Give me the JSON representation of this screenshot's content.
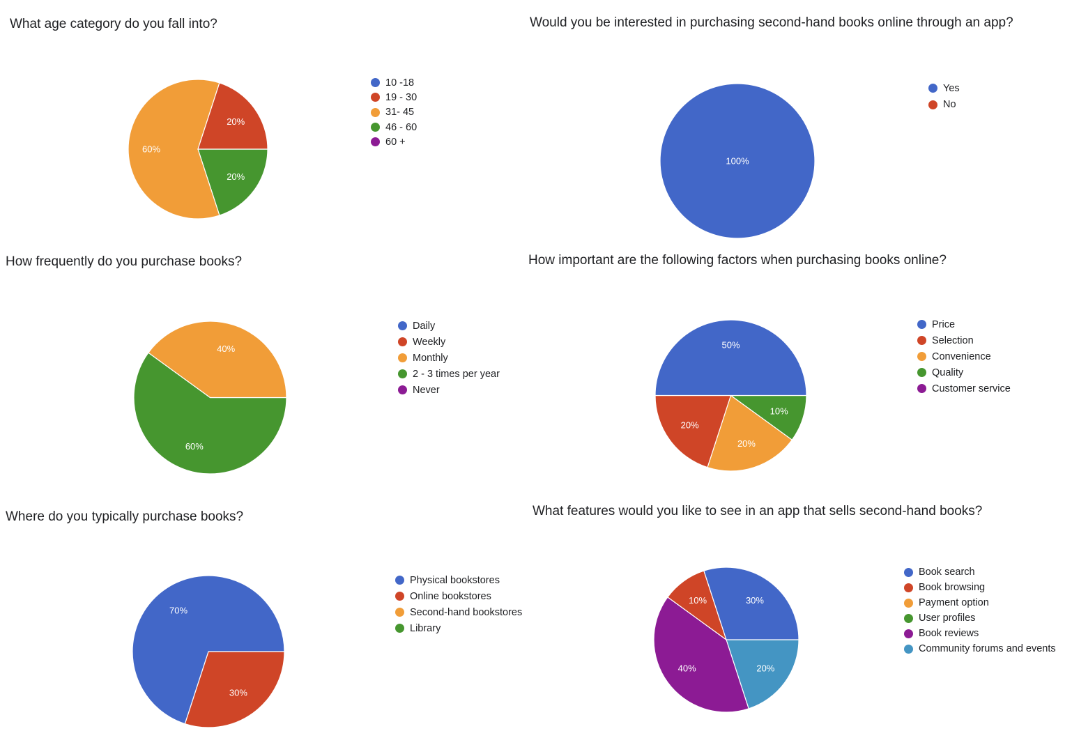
{
  "colors": {
    "blue": "#4267c8",
    "red": "#cf4527",
    "orange": "#f19d38",
    "green": "#46962f",
    "purple": "#8c1b94",
    "teal": "#4495c3"
  },
  "chart_data": [
    {
      "type": "pie",
      "title": "What age category do you fall into?",
      "legend_position": "right",
      "categories": [
        "10 -18",
        "19 - 30",
        "31- 45",
        "46 - 60",
        "60 +"
      ],
      "values": [
        0,
        20,
        60,
        20,
        0
      ],
      "colors": [
        "#4267c8",
        "#cf4527",
        "#f19d38",
        "#46962f",
        "#8c1b94"
      ]
    },
    {
      "type": "pie",
      "title": "Would you be interested in purchasing second-hand books online through an app?",
      "legend_position": "right",
      "categories": [
        "Yes",
        "No"
      ],
      "values": [
        100,
        0
      ],
      "colors": [
        "#4267c8",
        "#cf4527"
      ]
    },
    {
      "type": "pie",
      "title": "How frequently do you purchase books?",
      "legend_position": "right",
      "categories": [
        "Daily",
        "Weekly",
        "Monthly",
        "2 - 3 times per year",
        "Never"
      ],
      "values": [
        0,
        0,
        40,
        60,
        0
      ],
      "colors": [
        "#4267c8",
        "#cf4527",
        "#f19d38",
        "#46962f",
        "#8c1b94"
      ]
    },
    {
      "type": "pie",
      "title": "How important are the following factors when purchasing books online?",
      "legend_position": "right",
      "categories": [
        "Price",
        "Selection",
        "Convenience",
        "Quality",
        "Customer service"
      ],
      "values": [
        50,
        20,
        20,
        10,
        0
      ],
      "colors": [
        "#4267c8",
        "#cf4527",
        "#f19d38",
        "#46962f",
        "#8c1b94"
      ]
    },
    {
      "type": "pie",
      "title": "Where do you typically purchase books?",
      "legend_position": "right",
      "categories": [
        "Physical bookstores",
        "Online bookstores",
        "Second-hand bookstores",
        "Library"
      ],
      "values": [
        70,
        30,
        0,
        0
      ],
      "colors": [
        "#4267c8",
        "#cf4527",
        "#f19d38",
        "#46962f"
      ]
    },
    {
      "type": "pie",
      "title": "What features would you like to see in an app that sells second-hand books?",
      "legend_position": "right",
      "categories": [
        "Book search",
        "Book browsing",
        "Payment option",
        "User profiles",
        "Book reviews",
        "Community forums and events"
      ],
      "values": [
        30,
        10,
        0,
        0,
        40,
        20
      ],
      "colors": [
        "#4267c8",
        "#cf4527",
        "#f19d38",
        "#46962f",
        "#8c1b94",
        "#4495c3"
      ]
    }
  ]
}
